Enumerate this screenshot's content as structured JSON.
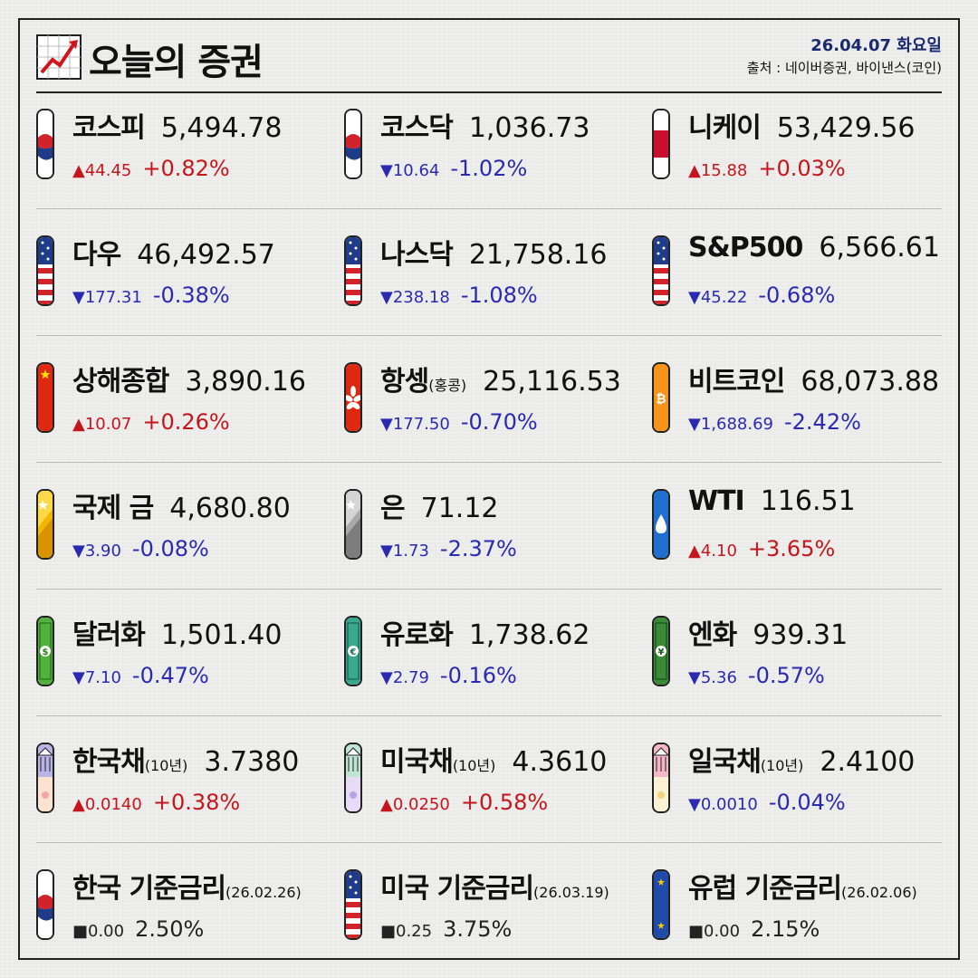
{
  "header": {
    "title": "오늘의 증권",
    "date": "26.04.07 화요일",
    "source": "출처 : 네이버증권, 바이낸스(코인)"
  },
  "colors": {
    "up": "#c4161c",
    "down": "#2a2ab0",
    "frame": "#222222",
    "date": "#1a2a6e"
  },
  "tiles": [
    {
      "name": "코스피",
      "sub": "",
      "value": "5,494.78",
      "change": "▲44.45",
      "pct": "+0.82%",
      "dir": "up",
      "icon": "korea-flag-icon"
    },
    {
      "name": "코스닥",
      "sub": "",
      "value": "1,036.73",
      "change": "▼10.64",
      "pct": "-1.02%",
      "dir": "down",
      "icon": "korea-flag-icon"
    },
    {
      "name": "니케이",
      "sub": "",
      "value": "53,429.56",
      "change": "▲15.88",
      "pct": "+0.03%",
      "dir": "up",
      "icon": "japan-flag-icon"
    },
    {
      "name": "다우",
      "sub": "",
      "value": "46,492.57",
      "change": "▼177.31",
      "pct": "-0.38%",
      "dir": "down",
      "icon": "usa-flag-icon"
    },
    {
      "name": "나스닥",
      "sub": "",
      "value": "21,758.16",
      "change": "▼238.18",
      "pct": "-1.08%",
      "dir": "down",
      "icon": "usa-flag-icon"
    },
    {
      "name": "S&P500",
      "sub": "",
      "value": "6,566.61",
      "change": "▼45.22",
      "pct": "-0.68%",
      "dir": "down",
      "icon": "usa-flag-icon"
    },
    {
      "name": "상해종합",
      "sub": "",
      "value": "3,890.16",
      "change": "▲10.07",
      "pct": "+0.26%",
      "dir": "up",
      "icon": "china-flag-icon"
    },
    {
      "name": "항셍",
      "sub": "(홍콩)",
      "value": "25,116.53",
      "change": "▼177.50",
      "pct": "-0.70%",
      "dir": "down",
      "icon": "hongkong-flag-icon"
    },
    {
      "name": "비트코인",
      "sub": "",
      "value": "68,073.88",
      "change": "▼1,688.69",
      "pct": "-2.42%",
      "dir": "down",
      "icon": "bitcoin-icon"
    },
    {
      "name": "국제 금",
      "sub": "",
      "value": "4,680.80",
      "change": "▼3.90",
      "pct": "-0.08%",
      "dir": "down",
      "icon": "gold-bar-icon"
    },
    {
      "name": "은",
      "sub": "",
      "value": "71.12",
      "change": "▼1.73",
      "pct": "-2.37%",
      "dir": "down",
      "icon": "silver-bar-icon"
    },
    {
      "name": "WTI",
      "sub": "",
      "value": "116.51",
      "change": "▲4.10",
      "pct": "+3.65%",
      "dir": "up",
      "icon": "oil-drop-icon"
    },
    {
      "name": "달러화",
      "sub": "",
      "value": "1,501.40",
      "change": "▼7.10",
      "pct": "-0.47%",
      "dir": "down",
      "icon": "dollar-bill-icon"
    },
    {
      "name": "유로화",
      "sub": "",
      "value": "1,738.62",
      "change": "▼2.79",
      "pct": "-0.16%",
      "dir": "down",
      "icon": "euro-bill-icon"
    },
    {
      "name": "엔화",
      "sub": "",
      "value": "939.31",
      "change": "▼5.36",
      "pct": "-0.57%",
      "dir": "down",
      "icon": "yen-bill-icon"
    },
    {
      "name": "한국채",
      "sub": "(10년)",
      "value": "3.7380",
      "change": "▲0.0140",
      "pct": "+0.38%",
      "dir": "up",
      "icon": "korea-bond-icon"
    },
    {
      "name": "미국채",
      "sub": "(10년)",
      "value": "4.3610",
      "change": "▲0.0250",
      "pct": "+0.58%",
      "dir": "up",
      "icon": "us-bond-icon"
    },
    {
      "name": "일국채",
      "sub": "(10년)",
      "value": "2.4100",
      "change": "▼0.0010",
      "pct": "-0.04%",
      "dir": "down",
      "icon": "japan-bond-icon"
    },
    {
      "name": "한국 기준금리",
      "sub": "(26.02.26)",
      "value": "",
      "change": "■0.00",
      "pct": "2.50%",
      "dir": "flat",
      "icon": "korea-flag-icon"
    },
    {
      "name": "미국 기준금리",
      "sub": "(26.03.19)",
      "value": "",
      "change": "■0.25",
      "pct": "3.75%",
      "dir": "flat",
      "icon": "usa-flag-icon"
    },
    {
      "name": "유럽 기준금리",
      "sub": "(26.02.06)",
      "value": "",
      "change": "■0.00",
      "pct": "2.15%",
      "dir": "flat",
      "icon": "eu-flag-icon"
    }
  ]
}
